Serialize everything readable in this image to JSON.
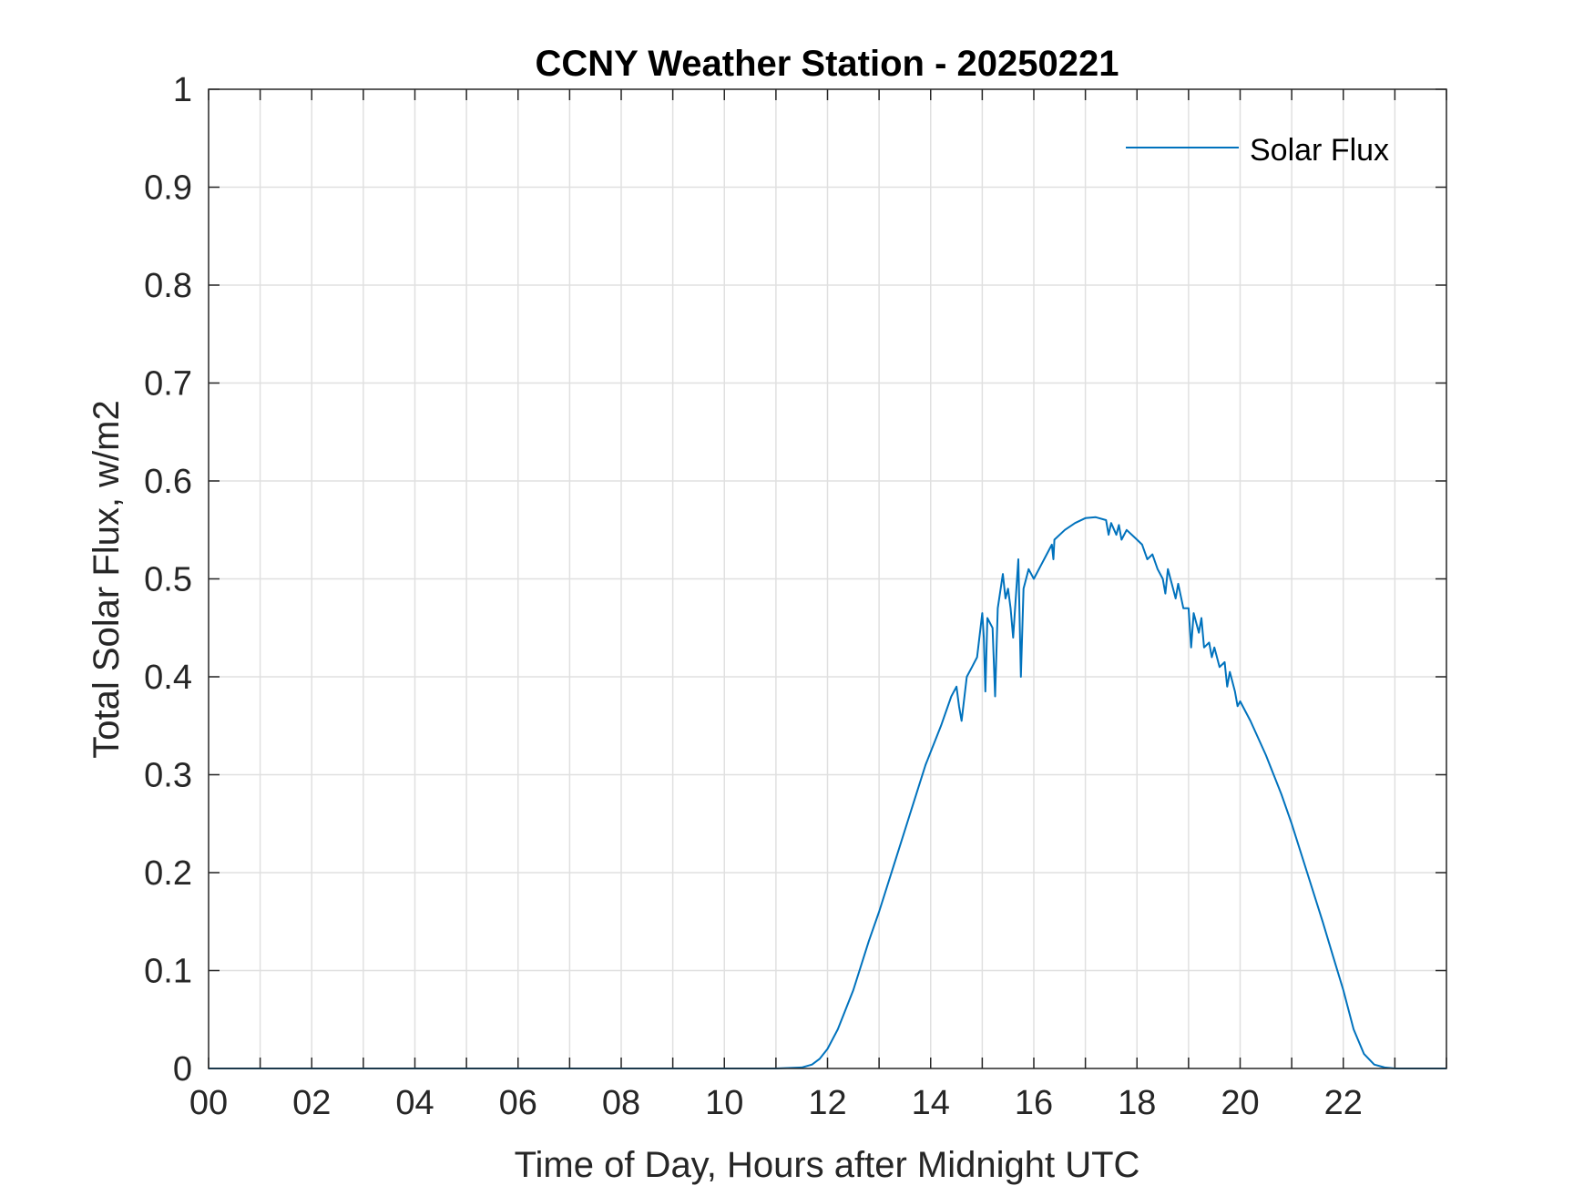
{
  "chart_data": {
    "type": "line",
    "title": "CCNY Weather Station - 20250221",
    "xlabel": "Time of Day, Hours after Midnight UTC",
    "ylabel": "Total Solar Flux, w/m2",
    "xlim": [
      0,
      24
    ],
    "ylim": [
      0,
      1
    ],
    "x_ticks": [
      0,
      2,
      4,
      6,
      8,
      10,
      12,
      14,
      16,
      18,
      20,
      22
    ],
    "x_tick_labels": [
      "00",
      "02",
      "04",
      "06",
      "08",
      "10",
      "12",
      "14",
      "16",
      "18",
      "20",
      "22"
    ],
    "y_ticks": [
      0,
      0.1,
      0.2,
      0.3,
      0.4,
      0.5,
      0.6,
      0.7,
      0.8,
      0.9,
      1
    ],
    "y_tick_labels": [
      "0",
      "0.1",
      "0.2",
      "0.3",
      "0.4",
      "0.5",
      "0.6",
      "0.7",
      "0.8",
      "0.9",
      "1"
    ],
    "grid": true,
    "legend": "top-right",
    "series": [
      {
        "name": "Solar Flux",
        "color": "#0072BD",
        "x": [
          0,
          11.0,
          11.5,
          11.7,
          11.85,
          12.0,
          12.2,
          12.5,
          12.8,
          13.0,
          13.3,
          13.6,
          13.9,
          14.2,
          14.4,
          14.5,
          14.55,
          14.6,
          14.7,
          14.8,
          14.9,
          15.0,
          15.03,
          15.06,
          15.1,
          15.2,
          15.25,
          15.3,
          15.4,
          15.45,
          15.5,
          15.55,
          15.6,
          15.7,
          15.75,
          15.8,
          15.9,
          16.0,
          16.2,
          16.35,
          16.38,
          16.4,
          16.6,
          16.8,
          17.0,
          17.2,
          17.4,
          17.45,
          17.5,
          17.6,
          17.65,
          17.7,
          17.8,
          17.9,
          18.0,
          18.1,
          18.2,
          18.3,
          18.4,
          18.5,
          18.55,
          18.6,
          18.7,
          18.75,
          18.8,
          18.9,
          19.0,
          19.05,
          19.1,
          19.2,
          19.25,
          19.3,
          19.4,
          19.45,
          19.5,
          19.6,
          19.7,
          19.75,
          19.8,
          19.9,
          19.95,
          20.0,
          20.2,
          20.5,
          20.8,
          21.0,
          21.3,
          21.6,
          21.8,
          22.0,
          22.2,
          22.4,
          22.6,
          22.8,
          23.0,
          23.2,
          24.0
        ],
        "values": [
          0,
          0,
          0.001,
          0.004,
          0.01,
          0.02,
          0.04,
          0.08,
          0.13,
          0.16,
          0.21,
          0.26,
          0.31,
          0.35,
          0.38,
          0.39,
          0.37,
          0.355,
          0.4,
          0.41,
          0.42,
          0.465,
          0.44,
          0.385,
          0.46,
          0.45,
          0.38,
          0.47,
          0.505,
          0.48,
          0.49,
          0.47,
          0.44,
          0.52,
          0.4,
          0.49,
          0.51,
          0.5,
          0.52,
          0.535,
          0.52,
          0.54,
          0.55,
          0.557,
          0.562,
          0.563,
          0.56,
          0.545,
          0.557,
          0.545,
          0.555,
          0.54,
          0.55,
          0.545,
          0.54,
          0.535,
          0.52,
          0.525,
          0.51,
          0.5,
          0.485,
          0.51,
          0.49,
          0.48,
          0.495,
          0.47,
          0.47,
          0.43,
          0.465,
          0.445,
          0.46,
          0.43,
          0.435,
          0.42,
          0.43,
          0.41,
          0.415,
          0.39,
          0.405,
          0.385,
          0.37,
          0.375,
          0.355,
          0.32,
          0.28,
          0.25,
          0.2,
          0.15,
          0.115,
          0.08,
          0.04,
          0.015,
          0.004,
          0.001,
          0,
          0,
          0
        ]
      }
    ]
  }
}
